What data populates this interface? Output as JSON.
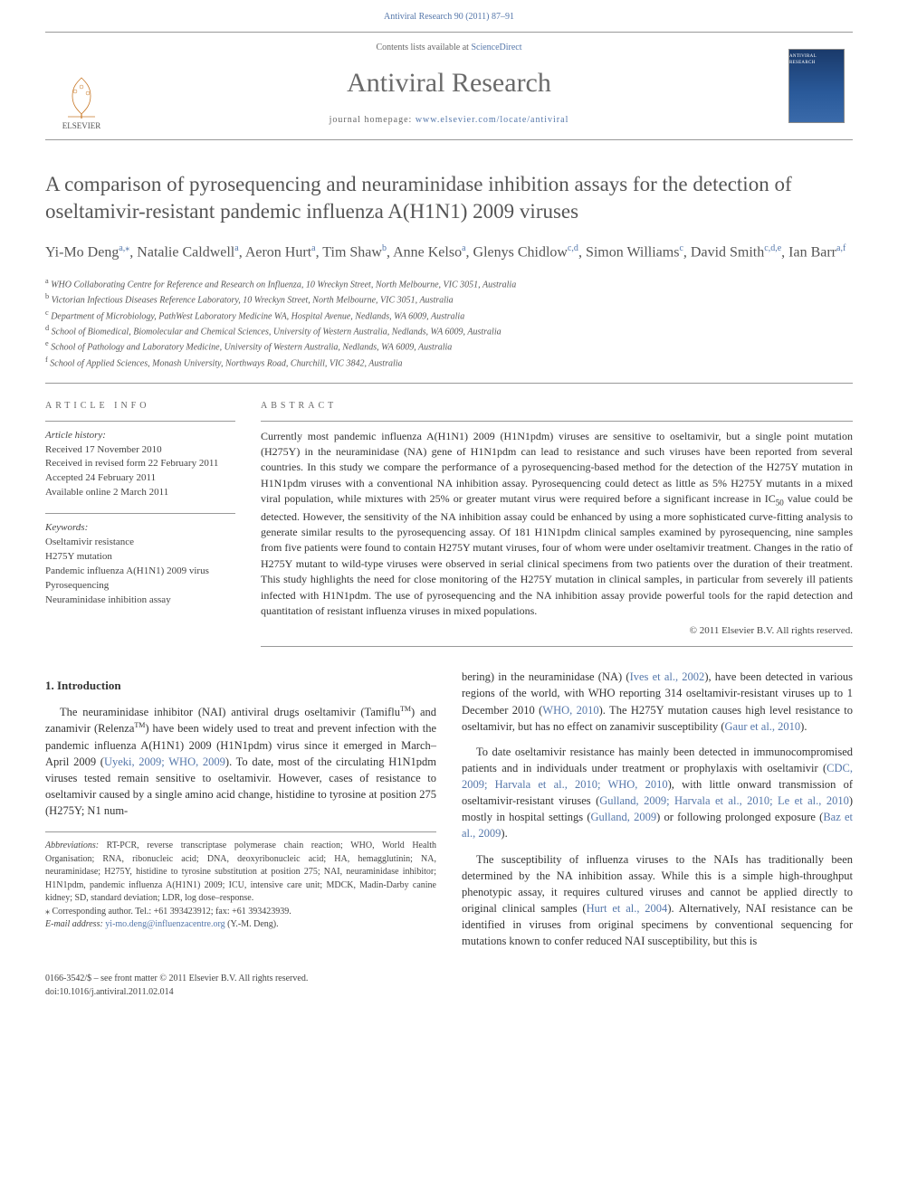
{
  "header": {
    "citation": "Antiviral Research 90 (2011) 87–91"
  },
  "masthead": {
    "publisher": "ELSEVIER",
    "contents_line_prefix": "Contents lists available at ",
    "contents_link": "ScienceDirect",
    "journal_name": "Antiviral Research",
    "homepage_label": "journal homepage: ",
    "homepage_url": "www.elsevier.com/locate/antiviral",
    "cover_title": "ANTIVIRAL RESEARCH"
  },
  "article": {
    "title": "A comparison of pyrosequencing and neuraminidase inhibition assays for the detection of oseltamivir-resistant pandemic influenza A(H1N1) 2009 viruses",
    "authors_html": "Yi-Mo Deng<sup>a,⁎</sup>, Natalie Caldwell<sup>a</sup>, Aeron Hurt<sup>a</sup>, Tim Shaw<sup>b</sup>, Anne Kelso<sup>a</sup>, Glenys Chidlow<sup>c,d</sup>, Simon Williams<sup>c</sup>, David Smith<sup>c,d,e</sup>, Ian Barr<sup>a,f</sup>",
    "affiliations": [
      {
        "sup": "a",
        "text": "WHO Collaborating Centre for Reference and Research on Influenza, 10 Wreckyn Street, North Melbourne, VIC 3051, Australia"
      },
      {
        "sup": "b",
        "text": "Victorian Infectious Diseases Reference Laboratory, 10 Wreckyn Street, North Melbourne, VIC 3051, Australia"
      },
      {
        "sup": "c",
        "text": "Department of Microbiology, PathWest Laboratory Medicine WA, Hospital Avenue, Nedlands, WA 6009, Australia"
      },
      {
        "sup": "d",
        "text": "School of Biomedical, Biomolecular and Chemical Sciences, University of Western Australia, Nedlands, WA 6009, Australia"
      },
      {
        "sup": "e",
        "text": "School of Pathology and Laboratory Medicine, University of Western Australia, Nedlands, WA 6009, Australia"
      },
      {
        "sup": "f",
        "text": "School of Applied Sciences, Monash University, Northways Road, Churchill, VIC 3842, Australia"
      }
    ]
  },
  "article_info": {
    "heading": "ARTICLE INFO",
    "history_label": "Article history:",
    "history": [
      "Received 17 November 2010",
      "Received in revised form 22 February 2011",
      "Accepted 24 February 2011",
      "Available online 2 March 2011"
    ],
    "keywords_label": "Keywords:",
    "keywords": [
      "Oseltamivir resistance",
      "H275Y mutation",
      "Pandemic influenza A(H1N1) 2009 virus",
      "Pyrosequencing",
      "Neuraminidase inhibition assay"
    ]
  },
  "abstract": {
    "heading": "ABSTRACT",
    "text": "Currently most pandemic influenza A(H1N1) 2009 (H1N1pdm) viruses are sensitive to oseltamivir, but a single point mutation (H275Y) in the neuraminidase (NA) gene of H1N1pdm can lead to resistance and such viruses have been reported from several countries. In this study we compare the performance of a pyrosequencing-based method for the detection of the H275Y mutation in H1N1pdm viruses with a conventional NA inhibition assay. Pyrosequencing could detect as little as 5% H275Y mutants in a mixed viral population, while mixtures with 25% or greater mutant virus were required before a significant increase in IC50 value could be detected. However, the sensitivity of the NA inhibition assay could be enhanced by using a more sophisticated curve-fitting analysis to generate similar results to the pyrosequencing assay. Of 181 H1N1pdm clinical samples examined by pyrosequencing, nine samples from five patients were found to contain H275Y mutant viruses, four of whom were under oseltamivir treatment. Changes in the ratio of H275Y mutant to wild-type viruses were observed in serial clinical specimens from two patients over the duration of their treatment. This study highlights the need for close monitoring of the H275Y mutation in clinical samples, in particular from severely ill patients infected with H1N1pdm. The use of pyrosequencing and the NA inhibition assay provide powerful tools for the rapid detection and quantitation of resistant influenza viruses in mixed populations.",
    "copyright": "© 2011 Elsevier B.V. All rights reserved."
  },
  "body": {
    "section1_heading": "1.  Introduction",
    "col1_p1_pre": "The neuraminidase inhibitor (NAI) antiviral drugs oseltamivir (Tamiflu",
    "col1_p1_mid": ") and zanamivir (Relenza",
    "col1_p1_post": ") have been widely used to treat and prevent infection with the pandemic influenza A(H1N1) 2009 (H1N1pdm) virus since it emerged in March–April 2009 (",
    "col1_p1_ref1": "Uyeki, 2009; WHO, 2009",
    "col1_p1_tail": "). To date, most of the circulating H1N1pdm viruses tested remain sensitive to oseltamivir. However, cases of resistance to oseltamivir caused by a single amino acid change, histidine to tyrosine at position 275 (H275Y; N1 num-",
    "col2_p1_pre": "bering) in the neuraminidase (NA) (",
    "col2_p1_ref1": "Ives et al., 2002",
    "col2_p1_mid": "), have been detected in various regions of the world, with WHO reporting 314 oseltamivir-resistant viruses up to 1 December 2010 (",
    "col2_p1_ref2": "WHO, 2010",
    "col2_p1_mid2": "). The H275Y mutation causes high level resistance to oseltamivir, but has no effect on zanamivir susceptibility (",
    "col2_p1_ref3": "Gaur et al., 2010",
    "col2_p1_tail": ").",
    "col2_p2_pre": "To date oseltamivir resistance has mainly been detected in immunocompromised patients and in individuals under treatment or prophylaxis with oseltamivir (",
    "col2_p2_ref1": "CDC, 2009; Harvala et al., 2010; WHO, 2010",
    "col2_p2_mid": "), with little onward transmission of oseltamivir-resistant viruses (",
    "col2_p2_ref2": "Gulland, 2009; Harvala et al., 2010; Le et al., 2010",
    "col2_p2_mid2": ") mostly in hospital settings (",
    "col2_p2_ref3": "Gulland, 2009",
    "col2_p2_mid3": ") or following prolonged exposure (",
    "col2_p2_ref4": "Baz et al., 2009",
    "col2_p2_tail": ").",
    "col2_p3_pre": "The susceptibility of influenza viruses to the NAIs has traditionally been determined by the NA inhibition assay. While this is a simple high-throughput phenotypic assay, it requires cultured viruses and cannot be applied directly to original clinical samples (",
    "col2_p3_ref1": "Hurt et al., 2004",
    "col2_p3_tail": "). Alternatively, NAI resistance can be identified in viruses from original specimens by conventional sequencing for mutations known to confer reduced NAI susceptibility, but this is"
  },
  "footnotes": {
    "abbrev_label": "Abbreviations:",
    "abbrev_text": " RT-PCR, reverse transcriptase polymerase chain reaction; WHO, World Health Organisation; RNA, ribonucleic acid; DNA, deoxyribonucleic acid; HA, hemagglutinin; NA, neuraminidase; H275Y, histidine to tyrosine substitution at position 275; NAI, neuraminidase inhibitor; H1N1pdm, pandemic influenza A(H1N1) 2009; ICU, intensive care unit; MDCK, Madin-Darby canine kidney; SD, standard deviation; LDR, log dose–response.",
    "corr_label": "Corresponding author. Tel.: +61 393423912; fax: +61 393423939.",
    "email_label": "E-mail address:",
    "email": "yi-mo.deng@influenzacentre.org",
    "email_tail": " (Y.-M. Deng)."
  },
  "footer": {
    "line1": "0166-3542/$ – see front matter © 2011 Elsevier B.V. All rights reserved.",
    "line2": "doi:10.1016/j.antiviral.2011.02.014"
  },
  "colors": {
    "link": "#5577aa",
    "text": "#333333",
    "muted": "#666666",
    "rule": "#999999"
  }
}
